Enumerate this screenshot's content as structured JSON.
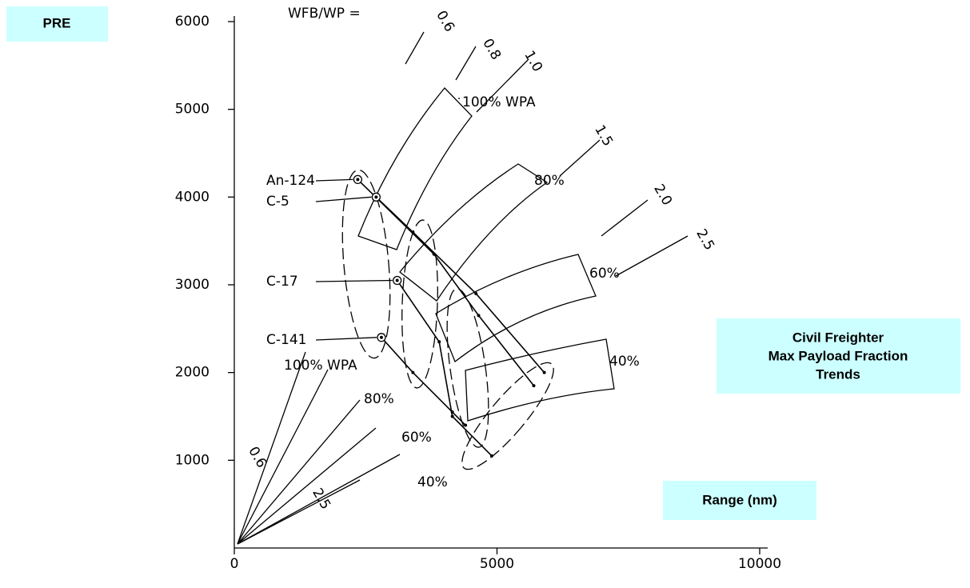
{
  "chart_data": {
    "type": "line",
    "badge": "PRE",
    "title_lines": [
      "Civil Freighter",
      "Max Payload Fraction",
      "Trends"
    ],
    "xlabel": "Range (nm)",
    "xlim": [
      0,
      10000
    ],
    "ylim": [
      0,
      6000
    ],
    "xticks": [
      0,
      5000,
      10000
    ],
    "yticks": [
      1000,
      2000,
      3000,
      4000,
      5000,
      6000
    ],
    "series": [
      {
        "name": "An-124",
        "color": "#000000",
        "x": [
          2350,
          3800,
          4650,
          5700
        ],
        "values": [
          4200,
          3350,
          2650,
          1850
        ]
      },
      {
        "name": "C-5",
        "color": "#000000",
        "x": [
          2700,
          3400,
          4600,
          5900
        ],
        "values": [
          4000,
          3600,
          2900,
          2000
        ]
      },
      {
        "name": "C-17",
        "color": "#000000",
        "x": [
          3100,
          3900,
          4150,
          4900
        ],
        "values": [
          3050,
          2350,
          1500,
          1050
        ]
      },
      {
        "name": "C-141",
        "color": "#000000",
        "x": [
          2800,
          3400,
          4150,
          4400
        ],
        "values": [
          2400,
          2000,
          1550,
          1400
        ]
      }
    ],
    "annotations": [
      "WFB/WP =",
      "0.6",
      "0.8",
      "1.0",
      "1.5",
      "2.0",
      "2.5",
      "100% WPA",
      "80%",
      "60%",
      "40%",
      "100% WPA",
      "80%",
      "60%",
      "40%",
      "0.6",
      "2.5"
    ]
  }
}
